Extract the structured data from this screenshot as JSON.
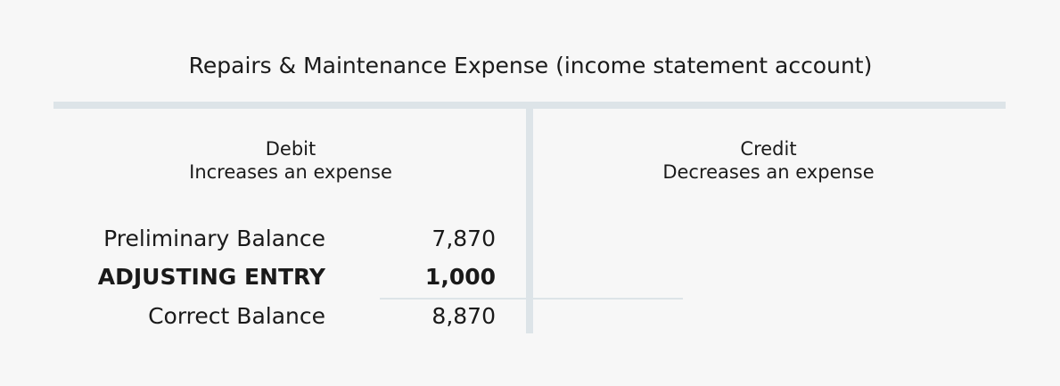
{
  "title": "Repairs & Maintenance Expense (income statement account)",
  "debit": {
    "heading": "Debit",
    "subheading": "Increases an expense"
  },
  "credit": {
    "heading": "Credit",
    "subheading": "Decreases an expense"
  },
  "rows": [
    {
      "label": "Preliminary Balance",
      "amount": "7,870"
    },
    {
      "label": "ADJUSTING ENTRY",
      "amount": "1,000"
    },
    {
      "label": "Correct Balance",
      "amount": "8,870"
    }
  ]
}
